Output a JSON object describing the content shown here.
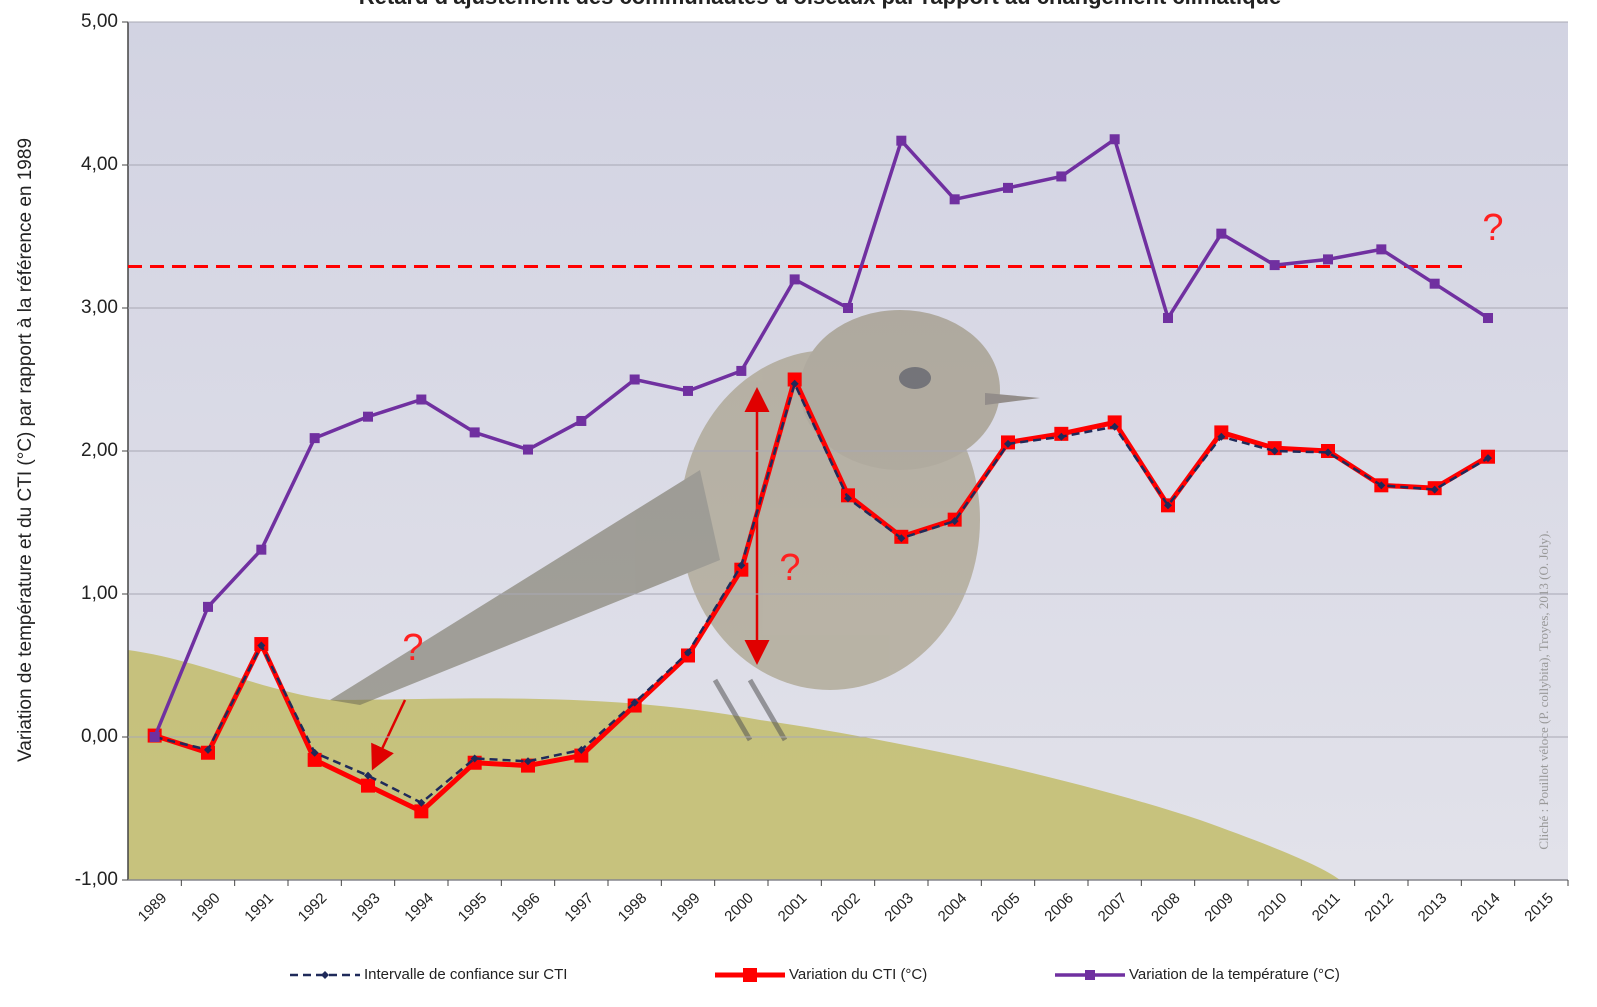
{
  "chart_data": {
    "type": "line",
    "title": "Retard d'ajustement des communautés d'oiseaux par rapport au changement climatique",
    "ylabel": "Variation de température et du CTI (°C) par rapport à la référence en 1989",
    "credit": "Cliché : Pouillot véloce (P. collybita), Troyes, 2013 (O. Joly).",
    "categories": [
      "1989",
      "1990",
      "1991",
      "1992",
      "1993",
      "1994",
      "1995",
      "1996",
      "1997",
      "1998",
      "1999",
      "2000",
      "2001",
      "2002",
      "2003",
      "2004",
      "2005",
      "2006",
      "2007",
      "2008",
      "2009",
      "2010",
      "2011",
      "2012",
      "2013",
      "2014",
      "2015"
    ],
    "series": [
      {
        "name": "Intervalle de confiance sur CTI",
        "color": "#1f2a5a",
        "style": "dashed",
        "values": [
          0,
          -0.09,
          0.64,
          -0.11,
          -0.27,
          -0.46,
          -0.15,
          -0.17,
          -0.09,
          0.24,
          0.59,
          1.2,
          2.47,
          1.67,
          1.39,
          1.51,
          2.05,
          2.1,
          2.17,
          1.62,
          2.1,
          2.0,
          1.99,
          1.76,
          1.73,
          1.95,
          null
        ]
      },
      {
        "name": "Variation du CTI (°C)",
        "color": "#ff0000",
        "style": "solid",
        "values": [
          0.01,
          -0.11,
          0.65,
          -0.16,
          -0.34,
          -0.52,
          -0.18,
          -0.2,
          -0.13,
          0.22,
          0.57,
          1.17,
          2.5,
          1.69,
          1.4,
          1.52,
          2.06,
          2.12,
          2.2,
          1.62,
          2.13,
          2.02,
          2.0,
          1.76,
          1.74,
          1.96,
          null
        ]
      },
      {
        "name": "Variation de la température (°C)",
        "color": "#7030a0",
        "style": "solid",
        "values": [
          0,
          0.91,
          1.31,
          2.09,
          2.24,
          2.36,
          2.13,
          2.01,
          2.21,
          2.5,
          2.42,
          2.56,
          3.2,
          3.0,
          4.17,
          3.76,
          3.84,
          3.92,
          4.18,
          2.93,
          3.52,
          3.3,
          3.34,
          3.41,
          3.17,
          2.93,
          null
        ]
      }
    ],
    "ylim": [
      -1,
      5
    ],
    "yticks": [
      {
        "value": -1,
        "label": "-1,00"
      },
      {
        "value": 0,
        "label": "0,00"
      },
      {
        "value": 1,
        "label": "1,00"
      },
      {
        "value": 2,
        "label": "2,00"
      },
      {
        "value": 3,
        "label": "3,00"
      },
      {
        "value": 4,
        "label": "4,00"
      },
      {
        "value": 5,
        "label": "5,00"
      }
    ],
    "grid": true,
    "reference_line": {
      "value": 3.29,
      "color": "#ff0000"
    },
    "annotations": [
      "?",
      "?",
      "?"
    ],
    "legend": "bottom"
  }
}
